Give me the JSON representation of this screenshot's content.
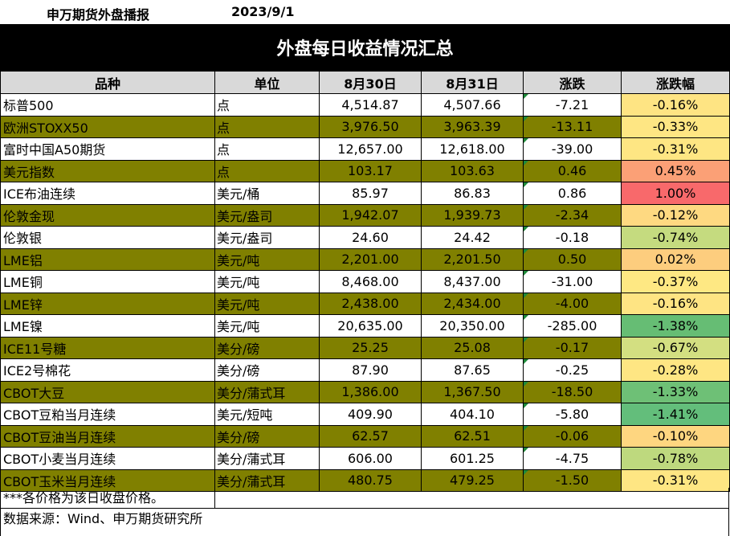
{
  "header": {
    "source_title": "申万期货外盘播报",
    "date": "2023/9/1",
    "main_title": "外盘每日收益情况汇总"
  },
  "table": {
    "columns": [
      "品种",
      "单位",
      "8月30日",
      "8月31日",
      "涨跌",
      "涨跌幅"
    ],
    "rows": [
      {
        "name": "标普500",
        "unit": "点",
        "d1": "4,514.87",
        "d2": "4,507.66",
        "chg": "-7.21",
        "pct": "-0.16%",
        "pct_color": "#fee483"
      },
      {
        "name": "欧洲STOXX50",
        "unit": "点",
        "d1": "3,976.50",
        "d2": "3,963.39",
        "chg": "-13.11",
        "pct": "-0.33%",
        "pct_color": "#fee683"
      },
      {
        "name": "富时中国A50期货",
        "unit": "点",
        "d1": "12,657.00",
        "d2": "12,618.00",
        "chg": "-39.00",
        "pct": "-0.31%",
        "pct_color": "#fee683"
      },
      {
        "name": "美元指数",
        "unit": "点",
        "d1": "103.17",
        "d2": "103.63",
        "chg": "0.46",
        "pct": "0.45%",
        "pct_color": "#fba076"
      },
      {
        "name": "ICE布油连续",
        "unit": "美元/桶",
        "d1": "85.97",
        "d2": "86.83",
        "chg": "0.86",
        "pct": "1.00%",
        "pct_color": "#f8696b"
      },
      {
        "name": "伦敦金现",
        "unit": "美元/盎司",
        "d1": "1,942.07",
        "d2": "1,939.73",
        "chg": "-2.34",
        "pct": "-0.12%",
        "pct_color": "#fed981"
      },
      {
        "name": "伦敦银",
        "unit": "美元/盎司",
        "d1": "24.60",
        "d2": "24.42",
        "chg": "-0.18",
        "pct": "-0.74%",
        "pct_color": "#c5db7f"
      },
      {
        "name": "LME铝",
        "unit": "美元/吨",
        "d1": "2,201.00",
        "d2": "2,201.50",
        "chg": "0.50",
        "pct": "0.02%",
        "pct_color": "#fdcd7e"
      },
      {
        "name": "LME铜",
        "unit": "美元/吨",
        "d1": "8,468.00",
        "d2": "8,437.00",
        "chg": "-31.00",
        "pct": "-0.37%",
        "pct_color": "#fee883"
      },
      {
        "name": "LME锌",
        "unit": "美元/吨",
        "d1": "2,438.00",
        "d2": "2,434.00",
        "chg": "-4.00",
        "pct": "-0.16%",
        "pct_color": "#fee483"
      },
      {
        "name": "LME镍",
        "unit": "美元/吨",
        "d1": "20,635.00",
        "d2": "20,350.00",
        "chg": "-285.00",
        "pct": "-1.38%",
        "pct_color": "#66bd74"
      },
      {
        "name": "ICE11号糖",
        "unit": "美分/磅",
        "d1": "25.25",
        "d2": "25.08",
        "chg": "-0.17",
        "pct": "-0.67%",
        "pct_color": "#d3df81"
      },
      {
        "name": "ICE2号棉花",
        "unit": "美分/磅",
        "d1": "87.90",
        "d2": "87.65",
        "chg": "-0.25",
        "pct": "-0.28%",
        "pct_color": "#fee683"
      },
      {
        "name": "CBOT大豆",
        "unit": "美分/蒲式耳",
        "d1": "1,386.00",
        "d2": "1,367.50",
        "chg": "-18.50",
        "pct": "-1.33%",
        "pct_color": "#6ec076"
      },
      {
        "name": "CBOT豆粕当月连续",
        "unit": "美元/短吨",
        "d1": "409.90",
        "d2": "404.10",
        "chg": "-5.80",
        "pct": "-1.41%",
        "pct_color": "#63be7b"
      },
      {
        "name": "CBOT豆油当月连续",
        "unit": "美分/磅",
        "d1": "62.57",
        "d2": "62.51",
        "chg": "-0.06",
        "pct": "-0.10%",
        "pct_color": "#fed680"
      },
      {
        "name": "CBOT小麦当月连续",
        "unit": "美分/蒲式耳",
        "d1": "606.00",
        "d2": "601.25",
        "chg": "-4.75",
        "pct": "-0.78%",
        "pct_color": "#bed97e"
      },
      {
        "name": "CBOT玉米当月连续",
        "unit": "美分/蒲式耳",
        "d1": "480.75",
        "d2": "479.25",
        "chg": "-1.50",
        "pct": "-0.31%",
        "pct_color": "#fee683"
      }
    ]
  },
  "footer": {
    "note": "***各价格为该日收盘价格。",
    "source": "数据来源：Wind、申万期货研究所"
  }
}
